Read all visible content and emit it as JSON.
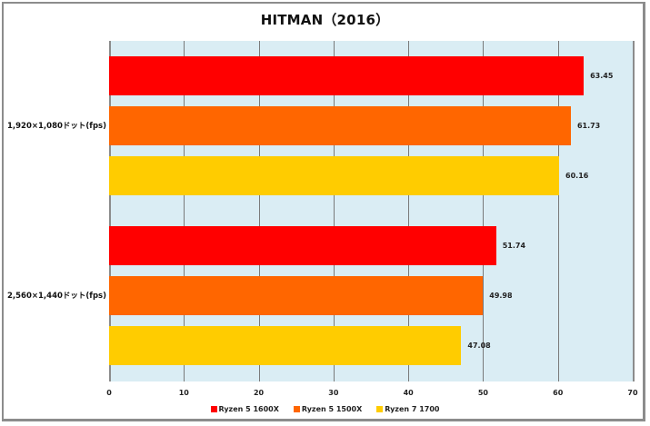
{
  "chart_data": {
    "type": "bar",
    "orientation": "horizontal",
    "title": "HITMAN（2016）",
    "xlabel": "",
    "ylabel": "",
    "xlim": [
      0,
      70
    ],
    "x_ticks": [
      "0",
      "10",
      "20",
      "30",
      "40",
      "50",
      "60",
      "70"
    ],
    "grid": true,
    "legend_position": "bottom",
    "categories": [
      "1,920×1,080ドット(fps)",
      "2,560×1,440ドット(fps)"
    ],
    "series": [
      {
        "name": "Ryzen 5 1600X",
        "color": "#ff0000",
        "values": [
          63.45,
          51.74
        ],
        "labels": [
          "63.45",
          "51.74"
        ]
      },
      {
        "name": "Ryzen 5 1500X",
        "color": "#ff6600",
        "values": [
          61.73,
          49.98
        ],
        "labels": [
          "61.73",
          "49.98"
        ]
      },
      {
        "name": "Ryzen 7 1700",
        "color": "#ffcc00",
        "values": [
          60.16,
          47.08
        ],
        "labels": [
          "60.16",
          "47.08"
        ]
      }
    ]
  },
  "colors": {
    "plot_background": "#daedf4",
    "gridline": "#7a7a7a",
    "frame": "#8c8c8c"
  }
}
